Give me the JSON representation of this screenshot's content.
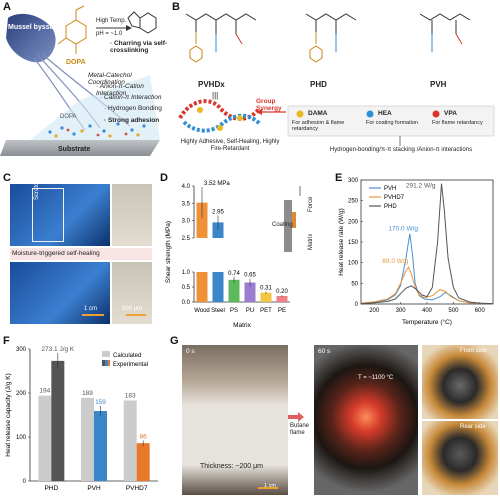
{
  "panels": {
    "a": {
      "letter": "A",
      "mussel_label": "Mussel byssus",
      "dopa_label": "DOPA",
      "condition_top": "High Temp.",
      "condition_bottom": "pH = ~1.0",
      "charring": "· Charring via self-crosslinking",
      "interactions": [
        "Metal-Catechol Coordination",
        "· Anion-π-Cation Interaction",
        "· Cation-π Interaction",
        "· Hydrogen Bonding",
        "· Strong adhesion"
      ],
      "substrate": "Substrate",
      "dopa_on_surface": "DOPA"
    },
    "b": {
      "letter": "B",
      "polymers": [
        "PVHDx",
        "PHD",
        "PVH"
      ],
      "group_synergy": "Group Synergy",
      "pvhd_desc": "Highly Adhesive, Self-Healing, Highly Fire-Retardant",
      "monomers": [
        {
          "name": "DAMA",
          "desc": "For adhesion & flame retardancy",
          "color": "#e8b920"
        },
        {
          "name": "HEA",
          "desc": "For coating formation",
          "color": "#2f8fd6"
        },
        {
          "name": "VPA",
          "desc": "For flame retardancy",
          "color": "#d9352c"
        }
      ],
      "interactions_note": "Hydrogen-bonding/π-π stacking /Anion-π interactions"
    },
    "c": {
      "letter": "C",
      "scratch_label": "Scratch area",
      "healing_label": "Moisture-triggered self-healing",
      "scale1": "1 cm",
      "scale2": "500 μm"
    },
    "d": {
      "letter": "D",
      "coating_label": "Coating",
      "force_label": "Force",
      "matrix_label": "Matrix"
    },
    "e": {
      "letter": "E",
      "annotations": [
        "291.2 W/g",
        "170.0 W/g",
        "89.0 W/g"
      ]
    },
    "f": {
      "letter": "F"
    },
    "g": {
      "letter": "G",
      "time0": "0 s",
      "time60": "60 s",
      "temp": "T = ~1100 °C",
      "flame": "Butane flame",
      "thickness": "Thickness: ~200 μm",
      "front": "Front side",
      "rear": "Rear side",
      "scale": "1 cm"
    }
  },
  "chart_data": [
    {
      "id": "D",
      "type": "bar",
      "ylabel": "Shear strength (MPa)",
      "xlabel": "Matrix",
      "categories": [
        "Wood",
        "Steel",
        "PS",
        "PU",
        "PET",
        "PE"
      ],
      "values": [
        3.52,
        2.95,
        0.74,
        0.65,
        0.31,
        0.2
      ],
      "value_labels": [
        "3.52 MPa",
        "2.95",
        "0.74",
        "0.65",
        "0.31",
        "0.20"
      ],
      "errors": [
        0.45,
        0.2,
        0.1,
        0.13,
        0.04,
        0.03
      ],
      "colors": [
        "#f0913a",
        "#3b86c8",
        "#5cba5c",
        "#9b7ccf",
        "#f2c642",
        "#f07f86"
      ],
      "y_ticks_lower": [
        "0.0",
        "0.5",
        "1.0"
      ],
      "y_ticks_upper": [
        "2.5",
        "3.0",
        "3.5",
        "4.0"
      ],
      "broken_axis": true
    },
    {
      "id": "E",
      "type": "line",
      "ylabel": "Heat release rate (W/g)",
      "xlabel": "Temperature (°C)",
      "xlim": [
        150,
        650
      ],
      "ylim": [
        0,
        300
      ],
      "x_ticks": [
        "200",
        "300",
        "400",
        "500",
        "600"
      ],
      "y_ticks": [
        "0",
        "50",
        "100",
        "150",
        "200",
        "250",
        "300"
      ],
      "series": [
        {
          "name": "PVH",
          "color": "#4a8fd0",
          "x": [
            150,
            200,
            250,
            280,
            300,
            320,
            335,
            345,
            355,
            370,
            390,
            420,
            450,
            470,
            490,
            520,
            560,
            600,
            650
          ],
          "y": [
            2,
            4,
            10,
            22,
            45,
            110,
            170,
            120,
            50,
            20,
            12,
            10,
            18,
            28,
            20,
            8,
            3,
            2,
            1
          ]
        },
        {
          "name": "PVHD7",
          "color": "#e8963a",
          "x": [
            150,
            200,
            250,
            280,
            300,
            320,
            330,
            340,
            355,
            370,
            390,
            420,
            450,
            470,
            490,
            520,
            560,
            600,
            650
          ],
          "y": [
            2,
            5,
            12,
            25,
            50,
            80,
            89,
            75,
            40,
            22,
            15,
            20,
            35,
            30,
            18,
            8,
            3,
            2,
            1
          ]
        },
        {
          "name": "PHD",
          "color": "#555555",
          "x": [
            150,
            200,
            250,
            280,
            300,
            320,
            340,
            360,
            380,
            400,
            420,
            440,
            455,
            465,
            480,
            500,
            520,
            560,
            600,
            650
          ],
          "y": [
            1,
            3,
            6,
            12,
            25,
            38,
            44,
            35,
            22,
            18,
            40,
            150,
            291.2,
            230,
            110,
            40,
            15,
            5,
            2,
            1
          ]
        }
      ]
    },
    {
      "id": "F",
      "type": "bar",
      "ylabel": "Heat release capacity (J/g K)",
      "categories": [
        "PHD",
        "PVH",
        "PVHD7"
      ],
      "series": [
        {
          "name": "Calculated",
          "values": [
            194,
            189,
            183
          ],
          "color": "#cccccc"
        },
        {
          "name": "Experimental",
          "values": [
            273,
            159,
            86
          ],
          "colors": [
            "#555555",
            "#3b86c8",
            "#e8782a"
          ],
          "errors": [
            18,
            12,
            6
          ]
        }
      ],
      "value_labels_calc": [
        "194",
        "189",
        "183"
      ],
      "value_labels_exp": [
        "273.1 J/g K",
        "159",
        "86"
      ],
      "ylim": [
        0,
        300
      ],
      "y_ticks": [
        "0",
        "100",
        "200",
        "300"
      ]
    }
  ]
}
